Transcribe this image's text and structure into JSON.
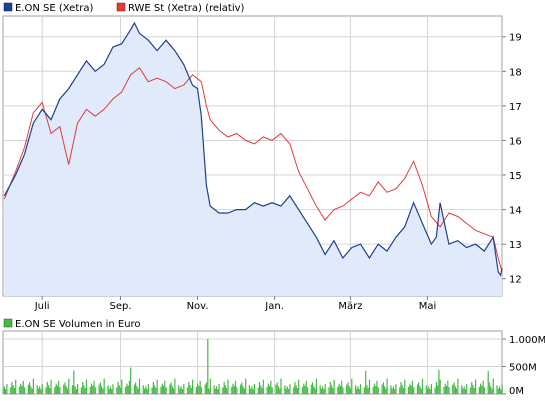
{
  "chart_data": [
    {
      "type": "line",
      "series": [
        {
          "name": "E.ON SE (Xetra)",
          "color": "#1f3f8f",
          "fill": "#e1eafb",
          "points": [
            [
              "2011-06-01",
              14.4
            ],
            [
              "2011-06-10",
              15.0
            ],
            [
              "2011-06-17",
              15.6
            ],
            [
              "2011-06-24",
              16.5
            ],
            [
              "2011-07-01",
              16.9
            ],
            [
              "2011-07-08",
              16.6
            ],
            [
              "2011-07-15",
              17.2
            ],
            [
              "2011-07-22",
              17.5
            ],
            [
              "2011-07-29",
              17.9
            ],
            [
              "2011-08-05",
              18.3
            ],
            [
              "2011-08-12",
              18.0
            ],
            [
              "2011-08-19",
              18.2
            ],
            [
              "2011-08-26",
              18.7
            ],
            [
              "2011-09-02",
              18.8
            ],
            [
              "2011-09-09",
              19.2
            ],
            [
              "2011-09-12",
              19.4
            ],
            [
              "2011-09-16",
              19.1
            ],
            [
              "2011-09-23",
              18.9
            ],
            [
              "2011-09-30",
              18.6
            ],
            [
              "2011-10-07",
              18.9
            ],
            [
              "2011-10-14",
              18.6
            ],
            [
              "2011-10-21",
              18.2
            ],
            [
              "2011-10-28",
              17.6
            ],
            [
              "2011-11-01",
              17.5
            ],
            [
              "2011-11-04",
              16.7
            ],
            [
              "2011-11-08",
              14.7
            ],
            [
              "2011-11-11",
              14.1
            ],
            [
              "2011-11-18",
              13.9
            ],
            [
              "2011-11-25",
              13.9
            ],
            [
              "2011-12-02",
              14.0
            ],
            [
              "2011-12-09",
              14.0
            ],
            [
              "2011-12-16",
              14.2
            ],
            [
              "2011-12-23",
              14.1
            ],
            [
              "2011-12-30",
              14.2
            ],
            [
              "2012-01-06",
              14.1
            ],
            [
              "2012-01-13",
              14.4
            ],
            [
              "2012-01-20",
              14.0
            ],
            [
              "2012-01-27",
              13.6
            ],
            [
              "2012-02-03",
              13.2
            ],
            [
              "2012-02-10",
              12.7
            ],
            [
              "2012-02-17",
              13.1
            ],
            [
              "2012-02-24",
              12.6
            ],
            [
              "2012-03-02",
              12.9
            ],
            [
              "2012-03-09",
              13.0
            ],
            [
              "2012-03-16",
              12.6
            ],
            [
              "2012-03-23",
              13.0
            ],
            [
              "2012-03-30",
              12.8
            ],
            [
              "2012-04-06",
              13.2
            ],
            [
              "2012-04-13",
              13.5
            ],
            [
              "2012-04-20",
              14.2
            ],
            [
              "2012-04-27",
              13.6
            ],
            [
              "2012-05-04",
              13.0
            ],
            [
              "2012-05-08",
              13.2
            ],
            [
              "2012-05-11",
              14.2
            ],
            [
              "2012-05-18",
              13.0
            ],
            [
              "2012-05-25",
              13.1
            ],
            [
              "2012-06-01",
              12.9
            ],
            [
              "2012-06-08",
              13.0
            ],
            [
              "2012-06-15",
              12.8
            ],
            [
              "2012-06-22",
              13.2
            ],
            [
              "2012-06-26",
              12.2
            ],
            [
              "2012-06-28",
              12.1
            ],
            [
              "2012-06-29",
              12.3
            ]
          ]
        },
        {
          "name": "RWE St (Xetra) (relativ)",
          "color": "#e03c3c",
          "points": [
            [
              "2011-06-01",
              14.3
            ],
            [
              "2011-06-10",
              15.1
            ],
            [
              "2011-06-17",
              15.8
            ],
            [
              "2011-06-24",
              16.8
            ],
            [
              "2011-07-01",
              17.1
            ],
            [
              "2011-07-08",
              16.2
            ],
            [
              "2011-07-15",
              16.4
            ],
            [
              "2011-07-22",
              15.3
            ],
            [
              "2011-07-29",
              16.5
            ],
            [
              "2011-08-05",
              16.9
            ],
            [
              "2011-08-12",
              16.7
            ],
            [
              "2011-08-19",
              16.9
            ],
            [
              "2011-08-26",
              17.2
            ],
            [
              "2011-09-02",
              17.4
            ],
            [
              "2011-09-09",
              17.9
            ],
            [
              "2011-09-16",
              18.1
            ],
            [
              "2011-09-23",
              17.7
            ],
            [
              "2011-09-30",
              17.8
            ],
            [
              "2011-10-07",
              17.7
            ],
            [
              "2011-10-14",
              17.5
            ],
            [
              "2011-10-21",
              17.6
            ],
            [
              "2011-10-28",
              17.9
            ],
            [
              "2011-11-04",
              17.7
            ],
            [
              "2011-11-08",
              17.0
            ],
            [
              "2011-11-11",
              16.6
            ],
            [
              "2011-11-18",
              16.3
            ],
            [
              "2011-11-25",
              16.1
            ],
            [
              "2011-12-02",
              16.2
            ],
            [
              "2011-12-09",
              16.0
            ],
            [
              "2011-12-16",
              15.9
            ],
            [
              "2011-12-23",
              16.1
            ],
            [
              "2011-12-30",
              16.0
            ],
            [
              "2012-01-06",
              16.2
            ],
            [
              "2012-01-13",
              15.9
            ],
            [
              "2012-01-20",
              15.1
            ],
            [
              "2012-01-27",
              14.6
            ],
            [
              "2012-02-03",
              14.1
            ],
            [
              "2012-02-10",
              13.7
            ],
            [
              "2012-02-17",
              14.0
            ],
            [
              "2012-02-24",
              14.1
            ],
            [
              "2012-03-02",
              14.3
            ],
            [
              "2012-03-09",
              14.5
            ],
            [
              "2012-03-16",
              14.4
            ],
            [
              "2012-03-23",
              14.8
            ],
            [
              "2012-03-30",
              14.5
            ],
            [
              "2012-04-06",
              14.6
            ],
            [
              "2012-04-13",
              14.9
            ],
            [
              "2012-04-20",
              15.4
            ],
            [
              "2012-04-27",
              14.7
            ],
            [
              "2012-05-04",
              13.8
            ],
            [
              "2012-05-11",
              13.5
            ],
            [
              "2012-05-18",
              13.9
            ],
            [
              "2012-05-25",
              13.8
            ],
            [
              "2012-06-01",
              13.6
            ],
            [
              "2012-06-08",
              13.4
            ],
            [
              "2012-06-15",
              13.3
            ],
            [
              "2012-06-22",
              13.2
            ],
            [
              "2012-06-26",
              12.6
            ],
            [
              "2012-06-29",
              12.2
            ]
          ]
        }
      ],
      "x_axis": {
        "type": "date",
        "range": [
          "2011-05-31",
          "2012-06-29"
        ],
        "ticks": [
          {
            "date": "2011-07-01",
            "label": "Juli"
          },
          {
            "date": "2011-09-01",
            "label": "Sep."
          },
          {
            "date": "2011-11-01",
            "label": "Nov."
          },
          {
            "date": "2012-01-01",
            "label": "Jan."
          },
          {
            "date": "2012-03-01",
            "label": "März"
          },
          {
            "date": "2012-05-01",
            "label": "Mai"
          }
        ]
      },
      "y_axis": {
        "scale": "linear",
        "range": [
          11.5,
          19.6
        ],
        "ticks": [
          12,
          13,
          14,
          15,
          16,
          17,
          18,
          19
        ],
        "tick_labels": [
          "12",
          "13",
          "14",
          "15",
          "16",
          "17",
          "18",
          "19"
        ],
        "position": "right"
      },
      "grid": true,
      "legend": "top-left"
    },
    {
      "type": "bar",
      "series": [
        {
          "name": "E.ON SE Volumen in Euro",
          "color": "#48b848",
          "pattern": [
            100,
            140,
            90,
            180,
            120,
            220,
            160,
            110,
            260,
            130,
            190,
            150,
            240,
            120,
            170,
            210,
            140,
            100,
            280,
            160
          ],
          "spikes": [
            {
              "date": "2011-11-09",
              "value": 1000
            },
            {
              "date": "2011-09-09",
              "value": 480
            },
            {
              "date": "2011-07-26",
              "value": 430
            },
            {
              "date": "2012-03-13",
              "value": 420
            },
            {
              "date": "2012-05-10",
              "value": 440
            },
            {
              "date": "2012-06-18",
              "value": 420
            }
          ]
        }
      ],
      "y_axis": {
        "range": [
          0,
          1000
        ],
        "ticks": [
          0,
          500,
          1000
        ],
        "tick_labels": [
          "0M",
          "500M",
          "1.000M"
        ],
        "position": "right"
      },
      "grid": true
    }
  ]
}
